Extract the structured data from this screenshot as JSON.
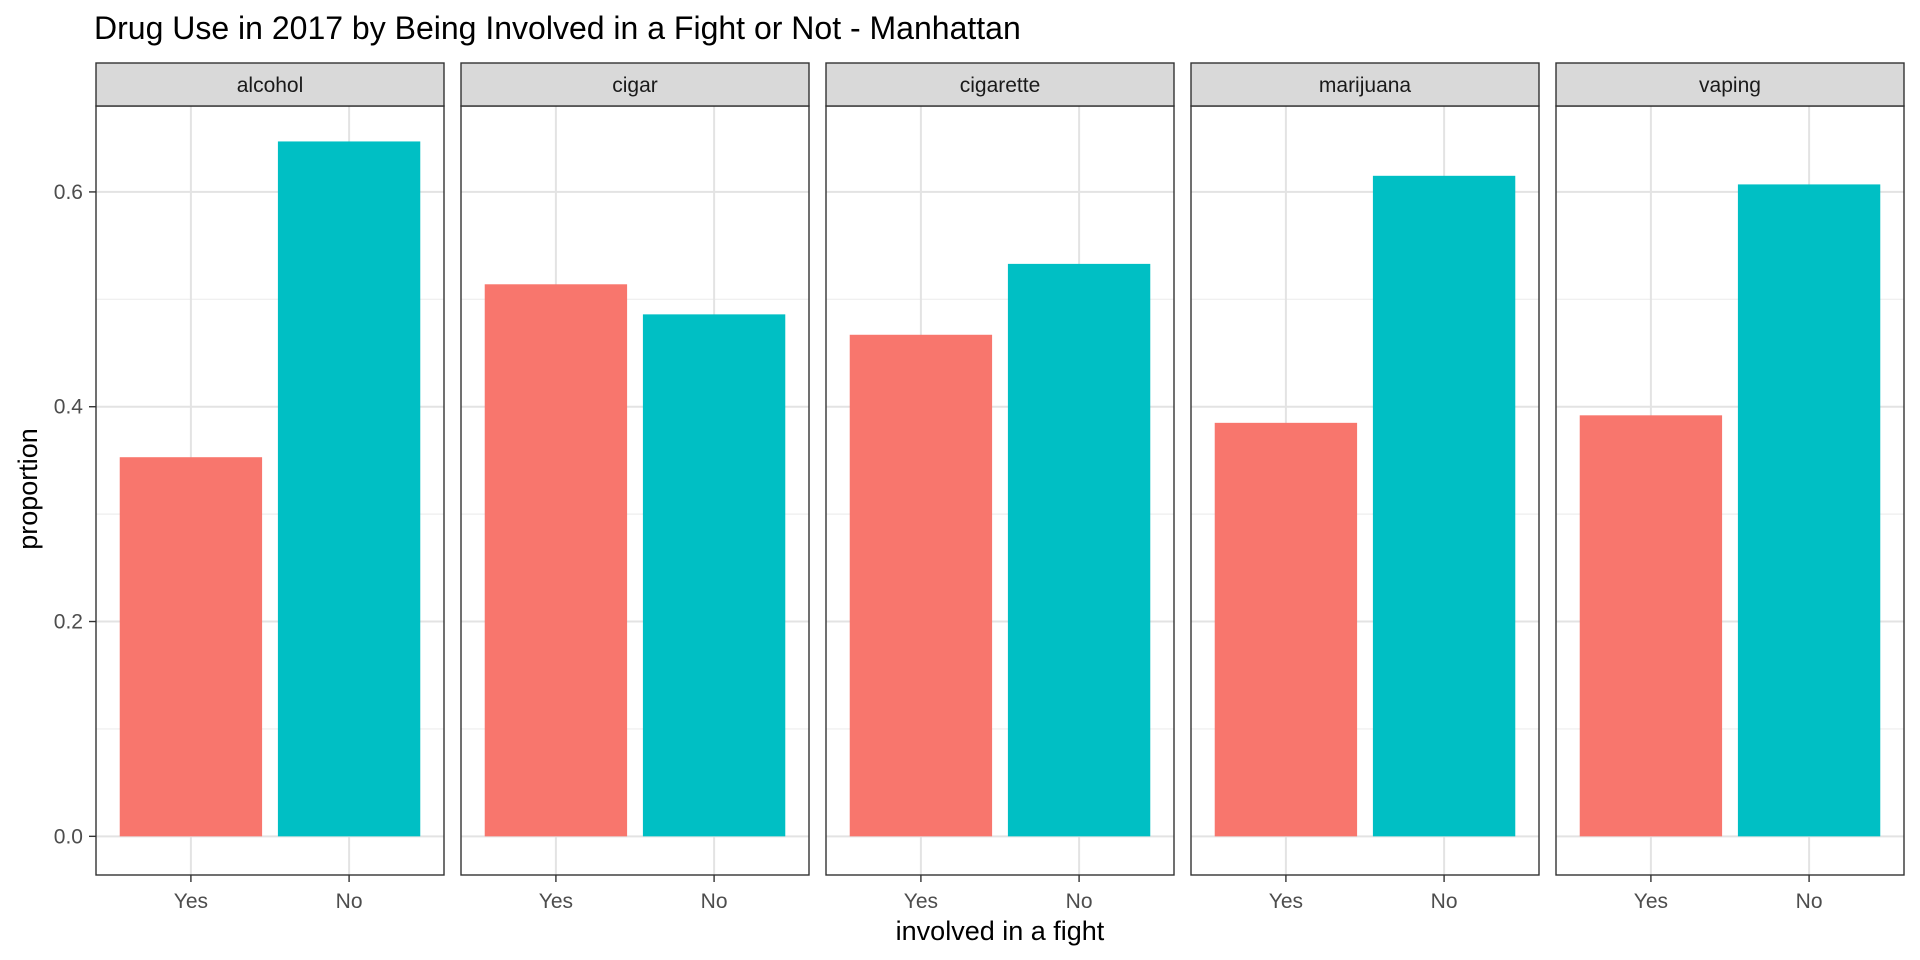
{
  "chart_data": {
    "type": "bar",
    "title": "Drug Use in 2017 by Being Involved in a Fight or Not  - Manhattan",
    "xlabel": "involved in a fight",
    "ylabel": "proportion",
    "categories": [
      "Yes",
      "No"
    ],
    "ylim": [
      -0.036,
      0.68
    ],
    "yticks": [
      0.0,
      0.2,
      0.4,
      0.6
    ],
    "ytick_labels": [
      "0.0",
      "0.2",
      "0.4",
      "0.6"
    ],
    "grid": true,
    "legend": "none",
    "colors": {
      "Yes": "#F8766D",
      "No": "#00BFC4"
    },
    "panels": [
      {
        "name": "alcohol",
        "values": [
          0.353,
          0.647
        ]
      },
      {
        "name": "cigar",
        "values": [
          0.514,
          0.486
        ]
      },
      {
        "name": "cigarette",
        "values": [
          0.467,
          0.533
        ]
      },
      {
        "name": "marijuana",
        "values": [
          0.385,
          0.615
        ]
      },
      {
        "name": "vaping",
        "values": [
          0.392,
          0.607
        ]
      }
    ]
  }
}
